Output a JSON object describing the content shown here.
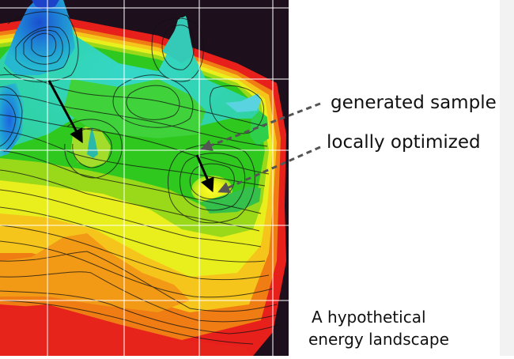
{
  "labels": {
    "generated_sample": "generated sample",
    "locally_optimized": "locally optimized",
    "caption_line1": "A hypothetical",
    "caption_line2": "energy landscape"
  },
  "colors": {
    "background": "#1e0f1c",
    "grid": "#ffffff",
    "arrow": "#000000",
    "leader": "#555555",
    "contour": "#111111"
  }
}
